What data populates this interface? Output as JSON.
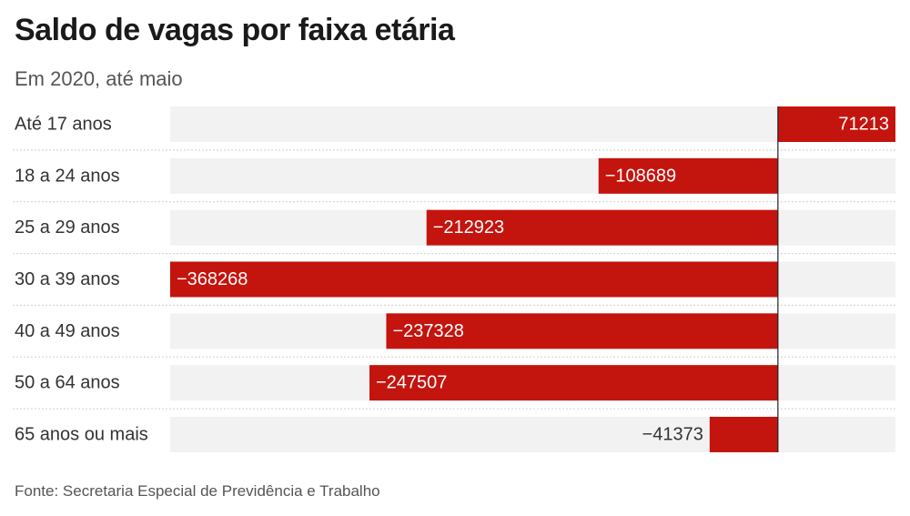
{
  "chart_data": {
    "type": "bar",
    "orientation": "horizontal",
    "title": "Saldo de vagas por faixa etária",
    "subtitle": "Em 2020, até maio",
    "source": "Fonte: Secretaria Especial de Previdência e Trabalho",
    "categories": [
      "Até 17 anos",
      "18 a 24 anos",
      "25 a 29 anos",
      "30 a 39 anos",
      "40 a 49 anos",
      "50 a 64 anos",
      "65 anos ou mais"
    ],
    "values": [
      71213,
      -108689,
      -212923,
      -368268,
      -237328,
      -247507,
      -41373
    ],
    "value_labels": [
      "71213",
      "−108689",
      "−212923",
      "−368268",
      "−237328",
      "−247507",
      "−41373"
    ],
    "xlim": [
      -368268,
      71213
    ],
    "colors": {
      "bar": "#c4140e",
      "track": "#f2f2f2",
      "zero_line": "#222222",
      "label_inside": "#ffffff",
      "label_outside": "#333333"
    },
    "grid": false,
    "legend": "none"
  }
}
